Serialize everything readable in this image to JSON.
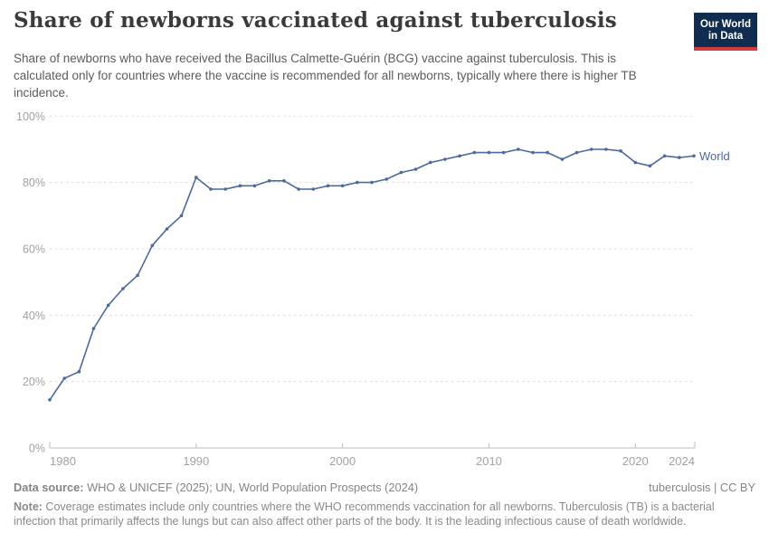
{
  "title": "Share of newborns vaccinated against tuberculosis",
  "subtitle": "Share of newborns who have received the Bacillus Calmette-Guérin (BCG) vaccine against tuberculosis. This is calculated only for countries where the vaccine is recommended for all newborns, typically where there is higher TB incidence.",
  "logo": {
    "line1": "Our World",
    "line2": "in Data"
  },
  "series_end_label": "World",
  "footer": {
    "source_label": "Data source:",
    "source_text": " WHO & UNICEF (2025); UN, World Population Prospects (2024)",
    "rights": "tuberculosis | CC BY",
    "note_label": "Note:",
    "note_text": " Coverage estimates include only countries where the WHO recommends vaccination for all newborns. Tuberculosis (TB) is a bacterial infection that primarily affects the lungs but can also affect other parts of the body. It is the leading infectious cause of death worldwide."
  },
  "colors": {
    "line": "#4C6A9C",
    "logo_bg": "#102D50",
    "logo_stripe": "#D03C3F",
    "title_text": "#3A3A3A",
    "subtitle_text": "#5C5C5C",
    "axis_label": "#A2A2A2",
    "gridline": "#DADADA",
    "axis_line": "#BDBDBD",
    "footer_text": "#858585"
  },
  "chart_data": {
    "type": "line",
    "title": "Share of newborns vaccinated against tuberculosis",
    "xlabel": "",
    "ylabel": "",
    "ylim": [
      0,
      100
    ],
    "yticks": [
      0,
      20,
      40,
      60,
      80,
      100
    ],
    "ytick_suffix": "%",
    "xticks": [
      1980,
      1990,
      2000,
      2010,
      2020,
      2024
    ],
    "grid": "horizontal-dashed",
    "legend_position": "line-end-right",
    "x": [
      1980,
      1981,
      1982,
      1983,
      1984,
      1985,
      1986,
      1987,
      1988,
      1989,
      1990,
      1991,
      1992,
      1993,
      1994,
      1995,
      1996,
      1997,
      1998,
      1999,
      2000,
      2001,
      2002,
      2003,
      2004,
      2005,
      2006,
      2007,
      2008,
      2009,
      2010,
      2011,
      2012,
      2013,
      2014,
      2015,
      2016,
      2017,
      2018,
      2019,
      2020,
      2021,
      2022,
      2023,
      2024
    ],
    "series": [
      {
        "name": "World",
        "color": "#4C6A9C",
        "values": [
          14.5,
          21,
          23,
          36,
          43,
          48,
          52,
          61,
          66,
          70,
          81.5,
          78,
          78,
          79,
          79,
          80.5,
          80.5,
          78,
          78,
          79,
          79,
          80,
          80,
          81,
          83,
          84,
          86,
          87,
          88,
          89,
          89,
          89,
          90,
          89,
          89,
          87,
          89,
          90,
          90,
          89.5,
          86,
          85,
          88,
          87.5,
          88
        ]
      }
    ]
  }
}
